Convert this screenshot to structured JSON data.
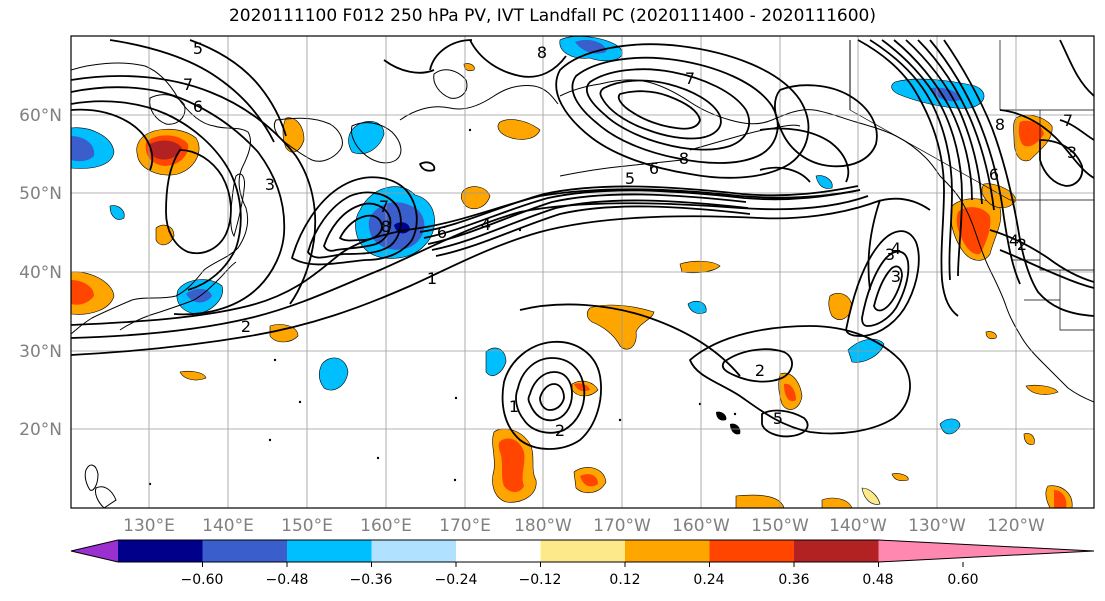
{
  "title": "2020111100 F012 250 hPa PV, IVT Landfall PC (2020111400 - 2020111600)",
  "latitude_labels": [
    "60°N",
    "50°N",
    "40°N",
    "30°N",
    "20°N"
  ],
  "longitude_labels": [
    "130°E",
    "140°E",
    "150°E",
    "160°E",
    "170°E",
    "180°W",
    "170°W",
    "160°W",
    "150°W",
    "140°W",
    "130°W",
    "120°W"
  ],
  "contour_labels": [
    "5",
    "6",
    "7",
    "3",
    "2",
    "8",
    "1",
    "4",
    "6",
    "7",
    "8",
    "5",
    "6",
    "7",
    "8",
    "3",
    "2",
    "4",
    "1",
    "2",
    "3",
    "4",
    "6",
    "8",
    "7",
    "2",
    "3",
    "5"
  ],
  "colorbar": {
    "tick_labels": [
      "−0.60",
      "−0.48",
      "−0.36",
      "−0.24",
      "−0.12",
      "0.12",
      "0.24",
      "0.36",
      "0.48",
      "0.60"
    ],
    "colors": [
      "#9b30d0",
      "#00008b",
      "#3a5fcd",
      "#00bfff",
      "#b0e2ff",
      "#ffffff",
      "#fde98a",
      "#ffa500",
      "#ff4500",
      "#b22222",
      "#ff88b0"
    ]
  }
}
